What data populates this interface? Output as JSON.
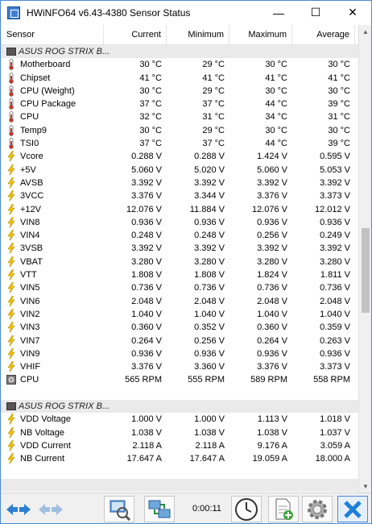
{
  "window": {
    "title": "HWiNFO64 v6.43-4380 Sensor Status",
    "icon": "hwinfo-app-icon"
  },
  "controls": {
    "minimize": "—",
    "maximize": "☐",
    "close": "✕"
  },
  "columns": {
    "sensor": "Sensor",
    "current": "Current",
    "minimum": "Minimum",
    "maximum": "Maximum",
    "average": "Average"
  },
  "groups": [
    {
      "title": "ASUS ROG STRIX B...",
      "rows": [
        {
          "icon": "thermometer-icon",
          "name": "Motherboard",
          "current": "30 °C",
          "minimum": "29 °C",
          "maximum": "30 °C",
          "average": "30 °C"
        },
        {
          "icon": "thermometer-icon",
          "name": "Chipset",
          "current": "41 °C",
          "minimum": "41 °C",
          "maximum": "41 °C",
          "average": "41 °C"
        },
        {
          "icon": "thermometer-icon",
          "name": "CPU (Weight)",
          "current": "30 °C",
          "minimum": "29 °C",
          "maximum": "30 °C",
          "average": "30 °C"
        },
        {
          "icon": "thermometer-icon",
          "name": "CPU Package",
          "current": "37 °C",
          "minimum": "37 °C",
          "maximum": "44 °C",
          "average": "39 °C"
        },
        {
          "icon": "thermometer-icon",
          "name": "CPU",
          "current": "32 °C",
          "minimum": "31 °C",
          "maximum": "34 °C",
          "average": "31 °C"
        },
        {
          "icon": "thermometer-icon",
          "name": "Temp9",
          "current": "30 °C",
          "minimum": "29 °C",
          "maximum": "30 °C",
          "average": "30 °C"
        },
        {
          "icon": "thermometer-icon",
          "name": "TSI0",
          "current": "37 °C",
          "minimum": "37 °C",
          "maximum": "44 °C",
          "average": "39 °C"
        },
        {
          "icon": "voltage-icon",
          "name": "Vcore",
          "current": "0.288 V",
          "minimum": "0.288 V",
          "maximum": "1.424 V",
          "average": "0.595 V"
        },
        {
          "icon": "voltage-icon",
          "name": "+5V",
          "current": "5.060 V",
          "minimum": "5.020 V",
          "maximum": "5.060 V",
          "average": "5.053 V"
        },
        {
          "icon": "voltage-icon",
          "name": "AVSB",
          "current": "3.392 V",
          "minimum": "3.392 V",
          "maximum": "3.392 V",
          "average": "3.392 V"
        },
        {
          "icon": "voltage-icon",
          "name": "3VCC",
          "current": "3.376 V",
          "minimum": "3.344 V",
          "maximum": "3.376 V",
          "average": "3.373 V"
        },
        {
          "icon": "voltage-icon",
          "name": "+12V",
          "current": "12.076 V",
          "minimum": "11.884 V",
          "maximum": "12.076 V",
          "average": "12.012 V"
        },
        {
          "icon": "voltage-icon",
          "name": "VIN8",
          "current": "0.936 V",
          "minimum": "0.936 V",
          "maximum": "0.936 V",
          "average": "0.936 V"
        },
        {
          "icon": "voltage-icon",
          "name": "VIN4",
          "current": "0.248 V",
          "minimum": "0.248 V",
          "maximum": "0.256 V",
          "average": "0.249 V"
        },
        {
          "icon": "voltage-icon",
          "name": "3VSB",
          "current": "3.392 V",
          "minimum": "3.392 V",
          "maximum": "3.392 V",
          "average": "3.392 V"
        },
        {
          "icon": "voltage-icon",
          "name": "VBAT",
          "current": "3.280 V",
          "minimum": "3.280 V",
          "maximum": "3.280 V",
          "average": "3.280 V"
        },
        {
          "icon": "voltage-icon",
          "name": "VTT",
          "current": "1.808 V",
          "minimum": "1.808 V",
          "maximum": "1.824 V",
          "average": "1.811 V"
        },
        {
          "icon": "voltage-icon",
          "name": "VIN5",
          "current": "0.736 V",
          "minimum": "0.736 V",
          "maximum": "0.736 V",
          "average": "0.736 V"
        },
        {
          "icon": "voltage-icon",
          "name": "VIN6",
          "current": "2.048 V",
          "minimum": "2.048 V",
          "maximum": "2.048 V",
          "average": "2.048 V"
        },
        {
          "icon": "voltage-icon",
          "name": "VIN2",
          "current": "1.040 V",
          "minimum": "1.040 V",
          "maximum": "1.040 V",
          "average": "1.040 V"
        },
        {
          "icon": "voltage-icon",
          "name": "VIN3",
          "current": "0.360 V",
          "minimum": "0.352 V",
          "maximum": "0.360 V",
          "average": "0.359 V"
        },
        {
          "icon": "voltage-icon",
          "name": "VIN7",
          "current": "0.264 V",
          "minimum": "0.256 V",
          "maximum": "0.264 V",
          "average": "0.263 V"
        },
        {
          "icon": "voltage-icon",
          "name": "VIN9",
          "current": "0.936 V",
          "minimum": "0.936 V",
          "maximum": "0.936 V",
          "average": "0.936 V"
        },
        {
          "icon": "voltage-icon",
          "name": "VHIF",
          "current": "3.376 V",
          "minimum": "3.360 V",
          "maximum": "3.376 V",
          "average": "3.373 V"
        },
        {
          "icon": "fan-icon",
          "name": "CPU",
          "current": "565 RPM",
          "minimum": "555 RPM",
          "maximum": "589 RPM",
          "average": "558 RPM"
        }
      ]
    },
    {
      "title": "ASUS ROG STRIX B...",
      "rows": [
        {
          "icon": "voltage-icon",
          "name": "VDD Voltage",
          "current": "1.000 V",
          "minimum": "1.000 V",
          "maximum": "1.113 V",
          "average": "1.018 V"
        },
        {
          "icon": "voltage-icon",
          "name": "NB Voltage",
          "current": "1.038 V",
          "minimum": "1.038 V",
          "maximum": "1.038 V",
          "average": "1.037 V"
        },
        {
          "icon": "voltage-icon",
          "name": "VDD Current",
          "current": "2.118 A",
          "minimum": "2.118 A",
          "maximum": "9.176 A",
          "average": "3.059 A"
        },
        {
          "icon": "voltage-icon",
          "name": "NB Current",
          "current": "17.647 A",
          "minimum": "17.647 A",
          "maximum": "19.059 A",
          "average": "18.000 A"
        }
      ]
    }
  ],
  "toolbar": {
    "timer": "0:00:11",
    "buttons": [
      "nav-arrows-icon",
      "nav-arrows-disabled-icon",
      "network-monitor-icon",
      "network-connect-icon",
      "clock-icon",
      "add-report-icon",
      "settings-gear-icon",
      "close-x-icon"
    ]
  },
  "colors": {
    "accent": "#1f7fd8",
    "group_bg": "#eaeaea",
    "toolbar_bg": "#f0f0f0",
    "volt_icon": "#e8b800"
  }
}
